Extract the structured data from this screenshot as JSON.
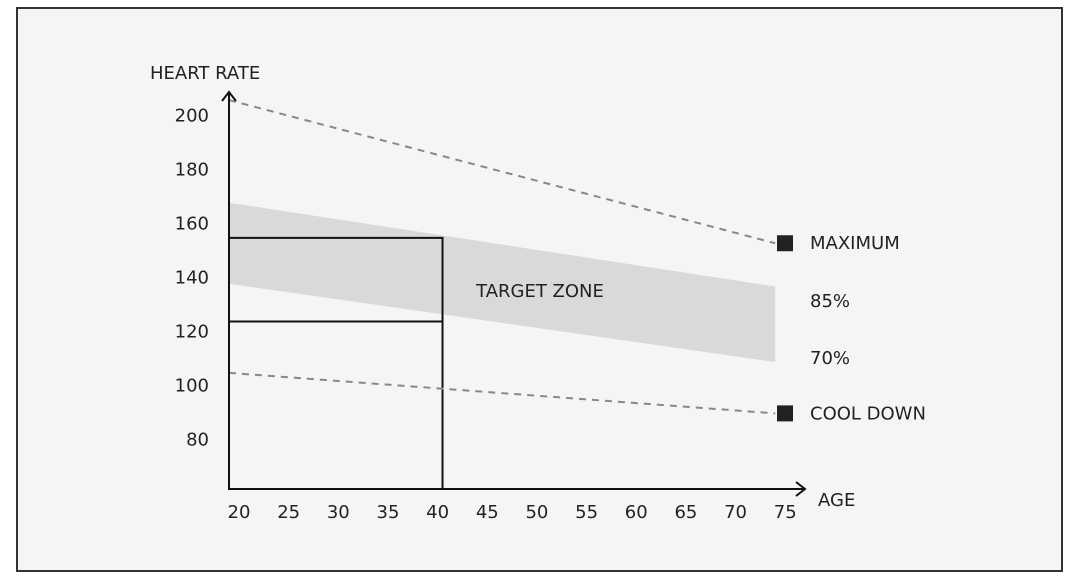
{
  "chart_data": {
    "type": "line",
    "y_label": "HEART RATE",
    "x_label": "AGE",
    "x": [
      20,
      75
    ],
    "series": [
      {
        "name": "MAXIMUM",
        "color": "#888888",
        "values": [
          206,
          153
        ]
      },
      {
        "name": "COOL DOWN",
        "color": "#888888",
        "values": [
          105,
          90
        ]
      }
    ],
    "band": {
      "label": "TARGET ZONE",
      "color": "#d9d9d9",
      "upper": [
        168,
        137
      ],
      "lower": [
        138,
        109
      ],
      "upper_label": "85%",
      "lower_label": "70%"
    },
    "marker": {
      "x": 41.5,
      "y": [
        124,
        155
      ]
    },
    "xlim": [
      20,
      78
    ],
    "ylim": [
      62,
      209
    ],
    "xticks": [
      20,
      25,
      30,
      35,
      40,
      45,
      50,
      55,
      60,
      65,
      70,
      75
    ],
    "yticks": [
      80,
      100,
      120,
      140,
      160,
      180,
      200
    ],
    "grid": false
  }
}
